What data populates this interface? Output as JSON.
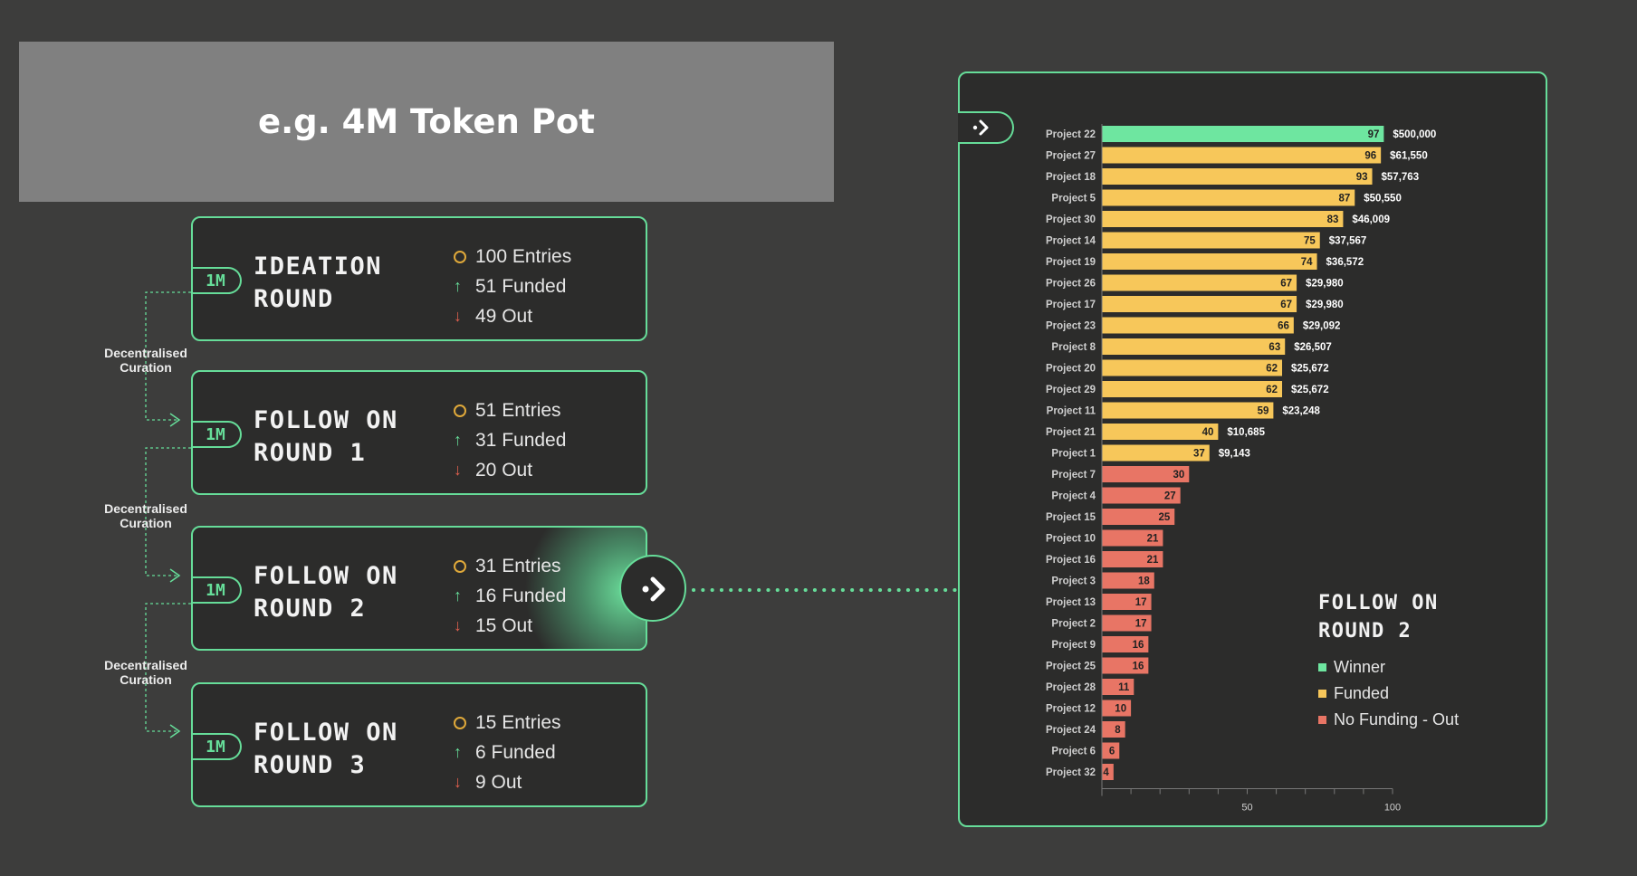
{
  "pot": {
    "title": "e.g. 4M Token Pot"
  },
  "curation_label": "Decentralised Curation",
  "rounds": [
    {
      "badge": "1M",
      "title_line1": "IDEATION",
      "title_line2": "ROUND",
      "entries": "100 Entries",
      "funded": "51 Funded",
      "out": "49 Out"
    },
    {
      "badge": "1M",
      "title_line1": "FOLLOW ON",
      "title_line2": "ROUND 1",
      "entries": "51 Entries",
      "funded": "31 Funded",
      "out": "20 Out"
    },
    {
      "badge": "1M",
      "title_line1": "FOLLOW ON",
      "title_line2": "ROUND 2",
      "entries": "31 Entries",
      "funded": "16 Funded",
      "out": "15 Out"
    },
    {
      "badge": "1M",
      "title_line1": "FOLLOW ON",
      "title_line2": "ROUND 3",
      "entries": "15 Entries",
      "funded": "6 Funded",
      "out": "9 Out"
    }
  ],
  "legend": {
    "title_line1": "FOLLOW ON",
    "title_line2": "ROUND 2",
    "items": [
      "Winner",
      "Funded",
      "No Funding - Out"
    ]
  },
  "colors": {
    "accent": "#66dd99",
    "winner": "#6ee6a0",
    "funded": "#f7c75a",
    "out": "#e87565",
    "entries": "#e0a93a"
  },
  "chart_data": {
    "type": "bar",
    "orientation": "horizontal",
    "categories": [
      "Project 22",
      "Project 27",
      "Project 18",
      "Project 5",
      "Project 30",
      "Project 14",
      "Project 19",
      "Project 26",
      "Project 17",
      "Project 23",
      "Project 8",
      "Project 20",
      "Project 29",
      "Project 11",
      "Project 21",
      "Project 1",
      "Project 7",
      "Project 4",
      "Project 15",
      "Project 10",
      "Project 16",
      "Project 3",
      "Project 13",
      "Project 2",
      "Project 9",
      "Project 25",
      "Project 28",
      "Project 12",
      "Project 24",
      "Project 6",
      "Project 32"
    ],
    "values": [
      97,
      96,
      93,
      87,
      83,
      75,
      74,
      67,
      67,
      66,
      63,
      62,
      62,
      59,
      40,
      37,
      30,
      27,
      25,
      21,
      21,
      18,
      17,
      17,
      16,
      16,
      11,
      10,
      8,
      6,
      4
    ],
    "amounts": [
      "$500,000",
      "$61,550",
      "$57,763",
      "$50,550",
      "$46,009",
      "$37,567",
      "$36,572",
      "$29,980",
      "$29,980",
      "$29,092",
      "$26,507",
      "$25,672",
      "$25,672",
      "$23,248",
      "$10,685",
      "$9,143",
      "",
      "",
      "",
      "",
      "",
      "",
      "",
      "",
      "",
      "",
      "",
      "",
      "",
      "",
      ""
    ],
    "status": [
      "winner",
      "funded",
      "funded",
      "funded",
      "funded",
      "funded",
      "funded",
      "funded",
      "funded",
      "funded",
      "funded",
      "funded",
      "funded",
      "funded",
      "funded",
      "funded",
      "out",
      "out",
      "out",
      "out",
      "out",
      "out",
      "out",
      "out",
      "out",
      "out",
      "out",
      "out",
      "out",
      "out",
      "out"
    ],
    "xlim": [
      0,
      100
    ],
    "xticks": [
      50,
      100
    ],
    "xtick_labels": [
      "50",
      "100"
    ],
    "title": "",
    "xlabel": "",
    "ylabel": ""
  }
}
